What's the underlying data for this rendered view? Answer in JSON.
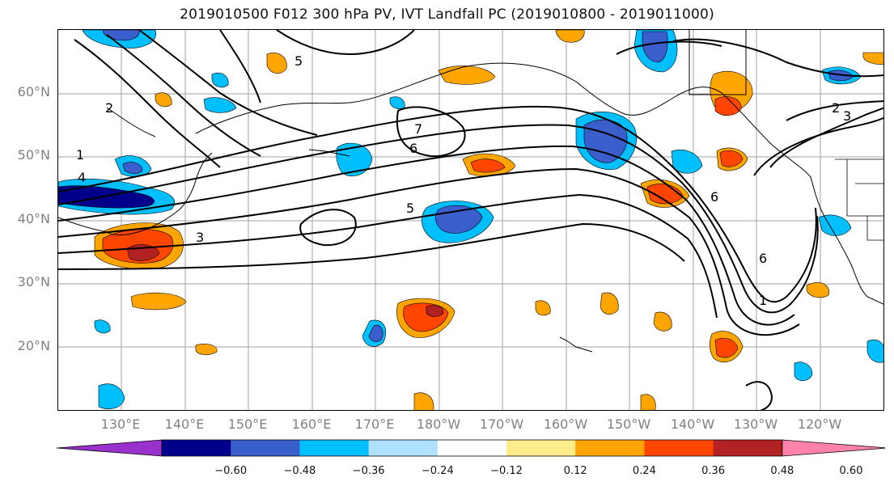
{
  "title": "2019010500 F012 300 hPa PV, IVT Landfall PC (2019010800 - 2019011000)",
  "map": {
    "lat_labels": [
      {
        "text": "60°N",
        "lat": 60
      },
      {
        "text": "50°N",
        "lat": 50
      },
      {
        "text": "40°N",
        "lat": 40
      },
      {
        "text": "30°N",
        "lat": 30
      },
      {
        "text": "20°N",
        "lat": 20
      }
    ],
    "lon_labels": [
      {
        "text": "130°E",
        "lon": 130
      },
      {
        "text": "140°E",
        "lon": 140
      },
      {
        "text": "150°E",
        "lon": 150
      },
      {
        "text": "160°E",
        "lon": 160
      },
      {
        "text": "170°E",
        "lon": 170
      },
      {
        "text": "180°W",
        "lon": 180
      },
      {
        "text": "170°W",
        "lon": 190
      },
      {
        "text": "160°W",
        "lon": 200
      },
      {
        "text": "150°W",
        "lon": 210
      },
      {
        "text": "140°W",
        "lon": 220
      },
      {
        "text": "130°W",
        "lon": 230
      },
      {
        "text": "120°W",
        "lon": 240
      }
    ],
    "contour_labels": [
      "1",
      "2",
      "3",
      "4",
      "5",
      "6",
      "7"
    ],
    "label_color": "#808080"
  },
  "colorbar": {
    "colors": [
      "#9932CC",
      "#00008B",
      "#3A5FCD",
      "#00BFFF",
      "#B0E2FF",
      "#FFFFFF",
      "#FFEC8B",
      "#FFA500",
      "#FF4500",
      "#B22222",
      "#FF82AB"
    ],
    "ticks": [
      "−0.60",
      "−0.48",
      "−0.36",
      "−0.24",
      "−0.12",
      "0.12",
      "0.24",
      "0.36",
      "0.48",
      "0.60"
    ]
  }
}
